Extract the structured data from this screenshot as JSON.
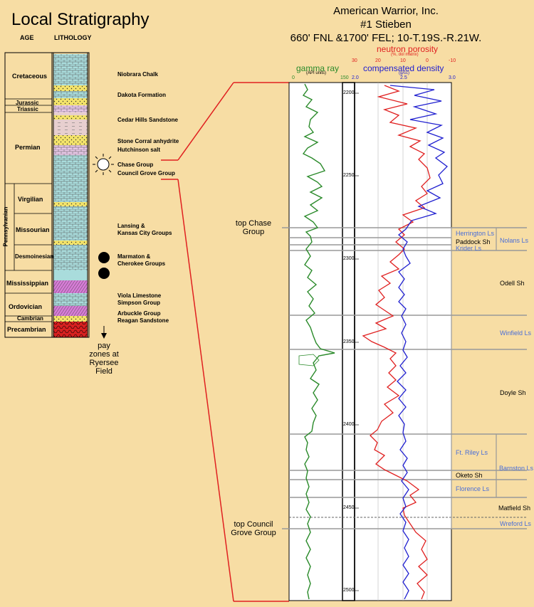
{
  "left": {
    "title": "Local Stratigraphy",
    "age_header": "AGE",
    "lithology_header": "LITHOLOGY",
    "ages": [
      "Cretaceous",
      "Jurassic",
      "Triassic",
      "Permian",
      "Virgilian",
      "Missourian",
      "Desmoinesian",
      "Mississippian",
      "Ordovician",
      "Cambrian",
      "Precambrian"
    ],
    "pennsylvanian": "Pennsylvanian",
    "formations": [
      "Niobrara Chalk",
      "Dakota Formation",
      "Cedar Hills Sandstone",
      "Stone Corral anhydrite",
      "Hutchinson salt",
      "Chase Group",
      "Council Grove Group",
      "Lansing &",
      "Kansas City Groups",
      "Marmaton &",
      "Cherokee Groups",
      "Viola Limestone",
      "Simpson Group",
      "Arbuckle Group",
      "Reagan Sandstone"
    ],
    "pay_text": [
      "pay",
      "zones at",
      "Ryersee",
      "Field"
    ]
  },
  "well": {
    "header": [
      "American Warrior, Inc.",
      "#1 Stieben",
      "660' FNL &1700' FEL; 10-T.19S.-R.21W."
    ],
    "gamma_title": "gamma ray",
    "gamma_units": "(API units)",
    "gamma_scale": [
      "0",
      "150"
    ],
    "neutron_title": "neutron porosity",
    "neutron_units": "(%, dol matrix)",
    "neutron_scale": [
      "30",
      "20",
      "10",
      "0",
      "-10"
    ],
    "density_title": "compensated density",
    "density_units": "(g/cc)",
    "density_scale": [
      "2.0",
      "2.5",
      "3.0"
    ],
    "depths": [
      "2200",
      "2250",
      "2300",
      "2350",
      "2400",
      "2450",
      "2500"
    ],
    "top_chase": [
      "top Chase",
      "Group"
    ],
    "top_council": [
      "top Council",
      "Grove Group"
    ],
    "units": [
      {
        "name": "Herrington Ls",
        "color": "#4a6ed8"
      },
      {
        "name": "Paddock Sh",
        "color": "#000000"
      },
      {
        "name": "Krider Ls",
        "color": "#4a6ed8"
      },
      {
        "name": "Nolans Ls",
        "color": "#4a6ed8"
      },
      {
        "name": "Odell Sh",
        "color": "#000000"
      },
      {
        "name": "Winfield Ls",
        "color": "#4a6ed8"
      },
      {
        "name": "Doyle Sh",
        "color": "#000000"
      },
      {
        "name": "Ft. Riley Ls",
        "color": "#4a6ed8"
      },
      {
        "name": "Barnston Ls",
        "color": "#4a6ed8"
      },
      {
        "name": "Oketo Sh",
        "color": "#000000"
      },
      {
        "name": "Florence Ls",
        "color": "#4a6ed8"
      },
      {
        "name": "Matfield Sh",
        "color": "#000000"
      },
      {
        "name": "Wreford Ls",
        "color": "#4a6ed8"
      }
    ],
    "colors": {
      "gamma": "#2a8a2a",
      "neutron": "#e02020",
      "density": "#2020d0",
      "formation": "#4a6ed8",
      "connector": "#e02020"
    }
  }
}
